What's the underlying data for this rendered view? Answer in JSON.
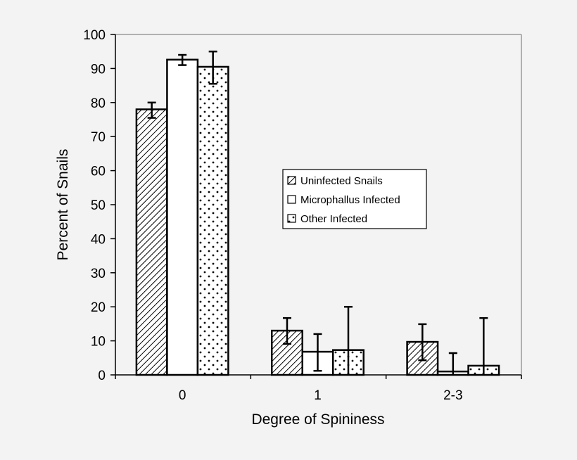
{
  "chart_data": {
    "type": "bar",
    "title": "",
    "xlabel": "Degree of Spininess",
    "ylabel": "Percent of Snails",
    "ylim": [
      0,
      100
    ],
    "yticks": [
      0,
      10,
      20,
      30,
      40,
      50,
      60,
      70,
      80,
      90,
      100
    ],
    "categories": [
      "0",
      "1",
      "2-3"
    ],
    "legend_position": "center-right",
    "grid": false,
    "series": [
      {
        "name": "Uninfected Snails",
        "pattern": "diagonal-hatch",
        "values": [
          78,
          13,
          9.7
        ],
        "error_low": [
          75.5,
          9.1,
          4.3
        ],
        "error_high": [
          80,
          16.7,
          14.9
        ]
      },
      {
        "name": "Microphallus Infected",
        "pattern": "solid-white",
        "values": [
          92.6,
          6.8,
          1
        ],
        "error_low": [
          91,
          1.2,
          0
        ],
        "error_high": [
          94,
          12,
          6.4
        ]
      },
      {
        "name": "Other Infected",
        "pattern": "dotted",
        "values": [
          90.5,
          7.3,
          2.7
        ],
        "error_low": [
          85.5,
          0,
          0
        ],
        "error_high": [
          95,
          20,
          16.7
        ]
      }
    ]
  }
}
